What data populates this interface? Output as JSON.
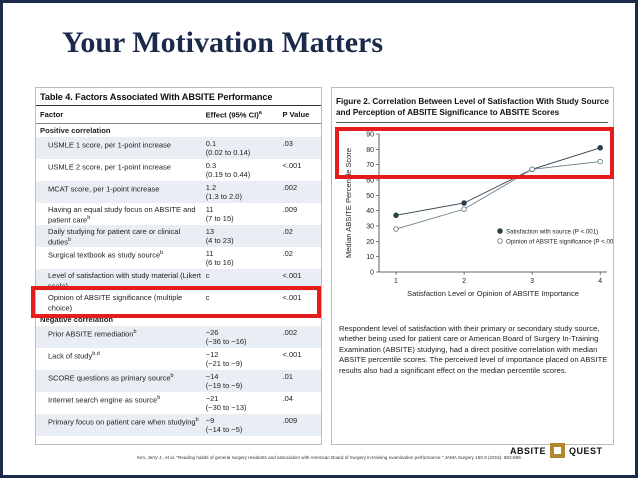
{
  "slide": {
    "title": "Your Motivation Matters",
    "citation": "Kim, Jerry J., et al. \"Reading habits of general surgery residents and association with American Board of Surgery in-training examination performance.\" JAMA Surgery 150.9 (2015): 882-889.",
    "logo_left": "ABSITE",
    "logo_right": "QUEST"
  },
  "table": {
    "title": "Table 4. Factors Associated With ABSITE Performance",
    "headers": [
      "Factor",
      "Effect (95% CI)",
      "P Value"
    ],
    "header_effect_sup": "a",
    "sections": [
      {
        "label": "Positive correlation",
        "rows": [
          {
            "factor": "USMLE 1 score, per 1-point increase",
            "sup": "",
            "effect": "0.1",
            "ci": "(0.02 to 0.14)",
            "p": ".03"
          },
          {
            "factor": "USMLE 2 score, per 1-point increase",
            "sup": "",
            "effect": "0.3",
            "ci": "(0.19 to 0.44)",
            "p": "<.001"
          },
          {
            "factor": "MCAT score, per 1-point increase",
            "sup": "",
            "effect": "1.2",
            "ci": "(1.3 to 2.0)",
            "p": ".002"
          },
          {
            "factor": "Having an equal study focus on ABSITE and patient care",
            "sup": "b",
            "effect": "11",
            "ci": "(7 to 15)",
            "p": ".009"
          },
          {
            "factor": "Daily studying for patient care or clinical duties",
            "sup": "b",
            "effect": "13",
            "ci": "(4 to 23)",
            "p": ".02"
          },
          {
            "factor": "Surgical textbook as study source",
            "sup": "b",
            "effect": "11",
            "ci": "(6 to 16)",
            "p": ".02"
          },
          {
            "factor": "Level of satisfaction with study material (Likert scale)",
            "sup": "",
            "effect": "c",
            "ci": "",
            "p": "<.001"
          },
          {
            "factor": "Opinion of ABSITE significance (multiple choice)",
            "sup": "",
            "effect": "c",
            "ci": "",
            "p": "<.001"
          }
        ]
      },
      {
        "label": "Negative correlation",
        "rows": [
          {
            "factor": "Prior ABSITE remediation",
            "sup": "b",
            "effect": "−26",
            "ci": "(−36 to −16)",
            "p": ".002"
          },
          {
            "factor": "Lack of study",
            "sup": "b,d",
            "effect": "−12",
            "ci": "(−21 to −9)",
            "p": "<.001"
          },
          {
            "factor": "SCORE questions as primary source",
            "sup": "b",
            "effect": "−14",
            "ci": "(−19 to −9)",
            "p": ".01"
          },
          {
            "factor": "Internet search engine as source",
            "sup": "b",
            "effect": "−21",
            "ci": "(−30 to −13)",
            "p": ".04"
          },
          {
            "factor": "Primary focus on patient care when studying",
            "sup": "b",
            "effect": "−9",
            "ci": "(−14 to −5)",
            "p": ".009"
          }
        ]
      }
    ]
  },
  "figure": {
    "title": "Figure 2. Correlation Between Level of Satisfaction With Study Source and Perception of ABSITE Significance to ABSITE Scores",
    "caption": "Respondent level of satisfaction with their primary or secondary study source, whether being used for patient care or American Board of Surgery In-Training Examination (ABSITE) studying, had a direct positive correlation with median ABSITE percentile scores. The perceived level of importance placed on ABSITE results also had a significant effect on the median percentile scores."
  },
  "chart_data": {
    "type": "line",
    "x": [
      1,
      2,
      3,
      4
    ],
    "xlabel": "Satisfaction Level or Opinion of ABSITE Importance",
    "ylabel": "Median ABSITE Percentile Score",
    "xlim": [
      0.75,
      4.1
    ],
    "ylim": [
      0,
      90
    ],
    "xticks": [
      "1",
      "2",
      "3",
      "4"
    ],
    "yticks": [
      "0",
      "10",
      "20",
      "30",
      "40",
      "50",
      "60",
      "70",
      "80",
      "90"
    ],
    "legend": "inside-lower-right",
    "series": [
      {
        "name": "Satisfaction with source (P <.001)",
        "values": [
          37,
          45,
          67,
          81
        ],
        "marker": "filled",
        "color": "#2a3f4a"
      },
      {
        "name": "Opinion of ABSITE significance (P <.001)",
        "values": [
          28,
          41,
          67,
          72
        ],
        "marker": "open",
        "color": "#6a7f8a"
      }
    ]
  }
}
